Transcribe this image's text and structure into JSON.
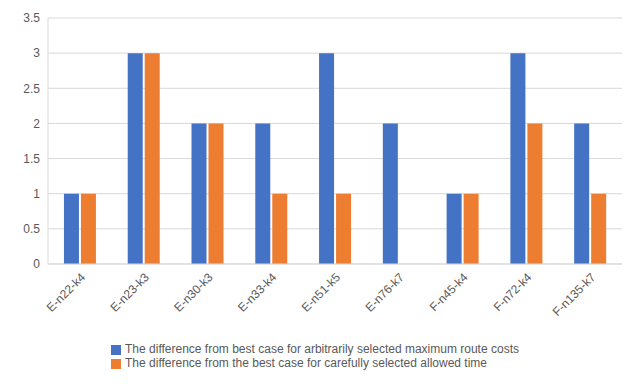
{
  "chart_data": {
    "type": "bar",
    "categories": [
      "E-n22-k4",
      "E-n23-k3",
      "E-n30-k3",
      "E-n33-k4",
      "E-n51-k5",
      "E-n76-k7",
      "F-n45-k4",
      "F-n72-k4",
      "F-n135-k7"
    ],
    "series": [
      {
        "name": "The difference from best case for arbitrarily selected maximum route costs",
        "color": "#4472c4",
        "values": [
          1,
          3,
          2,
          2,
          3,
          2,
          1,
          3,
          2
        ]
      },
      {
        "name": "The difference from the best case for carefully selected allowed time",
        "color": "#ed7d31",
        "values": [
          1,
          3,
          2,
          1,
          1,
          0,
          1,
          2,
          1
        ]
      }
    ],
    "ylim": [
      0,
      3.5
    ],
    "yticks": [
      0,
      0.5,
      1,
      1.5,
      2,
      2.5,
      3,
      3.5
    ],
    "grid": true,
    "legend": "bottom"
  }
}
